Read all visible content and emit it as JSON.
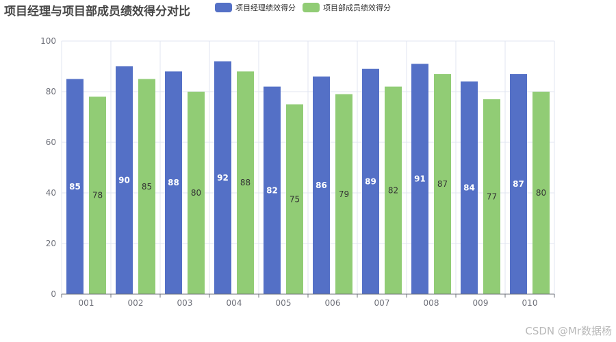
{
  "watermark": "CSDN @Mr数据杨",
  "chart_data": {
    "type": "bar",
    "title": "项目经理与项目部成员绩效得分对比",
    "xlabel": "",
    "ylabel": "",
    "categories": [
      "001",
      "002",
      "003",
      "004",
      "005",
      "006",
      "007",
      "008",
      "009",
      "010"
    ],
    "series": [
      {
        "name": "项目经理绩效得分",
        "color": "#5470c6",
        "label_color": "#ffffff",
        "values": [
          85,
          90,
          88,
          92,
          82,
          86,
          89,
          91,
          84,
          87
        ]
      },
      {
        "name": "项目部成员绩效得分",
        "color": "#91cc75",
        "label_color": "#333333",
        "values": [
          78,
          85,
          80,
          88,
          75,
          79,
          82,
          87,
          77,
          80
        ]
      }
    ],
    "ylim": [
      0,
      100
    ],
    "yticks": [
      0,
      20,
      40,
      60,
      80,
      100
    ],
    "data_labels": "inside-middle",
    "legend_position": "top",
    "grid": true
  }
}
